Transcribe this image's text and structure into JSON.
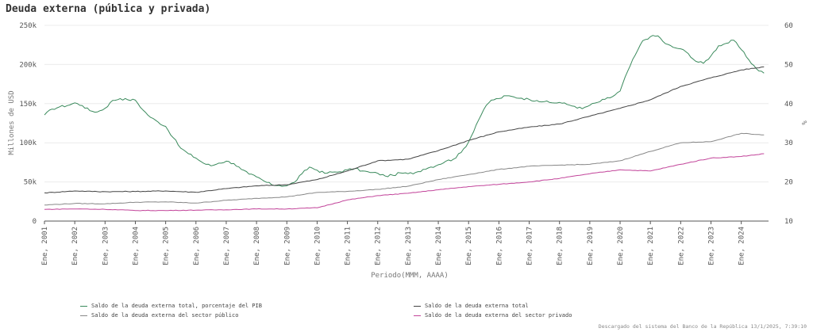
{
  "chart_data": {
    "type": "line",
    "title": "Deuda externa (pública y privada)",
    "xlabel": "Periodo(MMM, AAAA)",
    "ylabel": "Millones de USD",
    "y2label": "%",
    "ylim": [
      0,
      250000
    ],
    "y2lim": [
      10,
      60
    ],
    "y_ticks": [
      "0",
      "50k",
      "100k",
      "150k",
      "200k",
      "250k"
    ],
    "y2_ticks": [
      "10",
      "20",
      "30",
      "40",
      "50",
      "60"
    ],
    "x_ticks": [
      "Ene, 2001",
      "Ene, 2002",
      "Ene, 2003",
      "Ene, 2004",
      "Ene, 2005",
      "Ene, 2006",
      "Ene, 2007",
      "Ene, 2008",
      "Ene, 2009",
      "Ene, 2010",
      "Ene, 2011",
      "Ene, 2012",
      "Ene, 2013",
      "Ene, 2014",
      "Ene, 2015",
      "Ene, 2016",
      "Ene, 2017",
      "Ene, 2018",
      "Ene, 2019",
      "Ene, 2020",
      "Ene, 2021",
      "Ene, 2022",
      "Ene, 2023",
      "Ene, 2024"
    ],
    "x_range": [
      2001,
      2024.9
    ],
    "series": [
      {
        "name": "Saldo de la deuda externa total, porcentaje del PIB",
        "axis": "right",
        "color": "#3a8a5c",
        "x": [
          2001,
          2001.25,
          2001.5,
          2001.75,
          2002,
          2002.25,
          2002.5,
          2002.75,
          2003,
          2003.25,
          2003.5,
          2003.75,
          2004,
          2004.25,
          2004.5,
          2004.75,
          2005,
          2005.25,
          2005.5,
          2005.75,
          2006,
          2006.25,
          2006.5,
          2006.75,
          2007,
          2007.25,
          2007.5,
          2007.75,
          2008,
          2008.25,
          2008.5,
          2008.75,
          2009,
          2009.25,
          2009.5,
          2009.75,
          2010,
          2010.25,
          2010.5,
          2010.75,
          2011,
          2011.25,
          2011.5,
          2011.75,
          2012,
          2012.25,
          2012.5,
          2012.75,
          2013,
          2013.25,
          2013.5,
          2013.75,
          2014,
          2014.25,
          2014.5,
          2014.75,
          2015,
          2015.25,
          2015.5,
          2015.75,
          2016,
          2016.25,
          2016.5,
          2016.75,
          2017,
          2017.25,
          2017.5,
          2017.75,
          2018,
          2018.25,
          2018.5,
          2018.75,
          2019,
          2019.25,
          2019.5,
          2019.75,
          2020,
          2020.25,
          2020.5,
          2020.75,
          2021,
          2021.25,
          2021.5,
          2021.75,
          2022,
          2022.25,
          2022.5,
          2022.75,
          2023,
          2023.25,
          2023.5,
          2023.75,
          2024,
          2024.25,
          2024.5,
          2024.75
        ],
        "values": [
          37.1,
          38.6,
          39.2,
          39.5,
          40.2,
          39.5,
          38.2,
          37.9,
          38.8,
          40.8,
          41.3,
          41.0,
          40.9,
          38.4,
          36.5,
          35.3,
          34.2,
          31.3,
          28.6,
          27.2,
          26.1,
          24.8,
          24.1,
          24.8,
          25.3,
          24.7,
          23.2,
          22.0,
          21.3,
          20.2,
          19.3,
          19.1,
          19.0,
          19.9,
          22.1,
          23.8,
          23.0,
          22.2,
          22.5,
          22.6,
          23.1,
          23.4,
          22.8,
          22.4,
          22.2,
          21.5,
          21.7,
          22.3,
          22.1,
          22.4,
          23.2,
          23.8,
          24.4,
          25.3,
          25.8,
          27.5,
          30.2,
          34.6,
          38.5,
          40.9,
          41.3,
          42.0,
          41.7,
          41.4,
          41.1,
          40.8,
          40.5,
          40.2,
          40.3,
          39.8,
          39.3,
          38.7,
          39.6,
          40.3,
          41.1,
          41.8,
          43.2,
          48.3,
          52.4,
          56.1,
          57.1,
          57.3,
          55.3,
          54.4,
          54.0,
          52.8,
          50.8,
          50.3,
          52.2,
          54.8,
          55.4,
          56.2,
          53.8,
          51.2,
          48.9,
          47.8
        ]
      },
      {
        "name": "Saldo de la deuda externa total",
        "axis": "left",
        "color": "#444444",
        "x": [
          2001,
          2002,
          2003,
          2004,
          2005,
          2006,
          2007,
          2008,
          2009,
          2010,
          2011,
          2012,
          2013,
          2014,
          2015,
          2016,
          2017,
          2018,
          2019,
          2020,
          2021,
          2022,
          2023,
          2024,
          2024.75
        ],
        "values": [
          36000,
          38500,
          37500,
          37800,
          38500,
          36800,
          41500,
          45000,
          46500,
          53000,
          64000,
          77000,
          79000,
          90000,
          103000,
          114000,
          120000,
          124000,
          134000,
          144000,
          155000,
          172000,
          183000,
          193000,
          197000
        ]
      },
      {
        "name": "Saldo de la deuda externa del sector público",
        "axis": "left",
        "color": "#888888",
        "x": [
          2001,
          2002,
          2003,
          2004,
          2005,
          2006,
          2007,
          2008,
          2009,
          2010,
          2011,
          2012,
          2013,
          2014,
          2015,
          2016,
          2017,
          2018,
          2019,
          2020,
          2021,
          2022,
          2023,
          2024,
          2024.75
        ],
        "values": [
          20500,
          22500,
          22000,
          24000,
          24500,
          23000,
          26500,
          29000,
          31000,
          36500,
          38000,
          40500,
          44500,
          53000,
          59500,
          66000,
          70000,
          71500,
          72500,
          77000,
          89000,
          100000,
          101500,
          112000,
          110000
        ]
      },
      {
        "name": "Saldo de la deuda externa del sector privado",
        "axis": "left",
        "color": "#c2449a",
        "x": [
          2001,
          2002,
          2003,
          2004,
          2005,
          2006,
          2007,
          2008,
          2009,
          2010,
          2011,
          2012,
          2013,
          2014,
          2015,
          2016,
          2017,
          2018,
          2019,
          2020,
          2021,
          2022,
          2023,
          2024,
          2024.75
        ],
        "values": [
          15000,
          15500,
          15000,
          13500,
          13500,
          14000,
          14500,
          15500,
          15500,
          17000,
          27000,
          32500,
          35500,
          40000,
          44000,
          47000,
          50000,
          54500,
          60500,
          65500,
          64000,
          72500,
          80500,
          82500,
          86000
        ]
      }
    ]
  },
  "footer": "Descargado del sistema del Banco de la República 13/1/2025, 7:39:10"
}
